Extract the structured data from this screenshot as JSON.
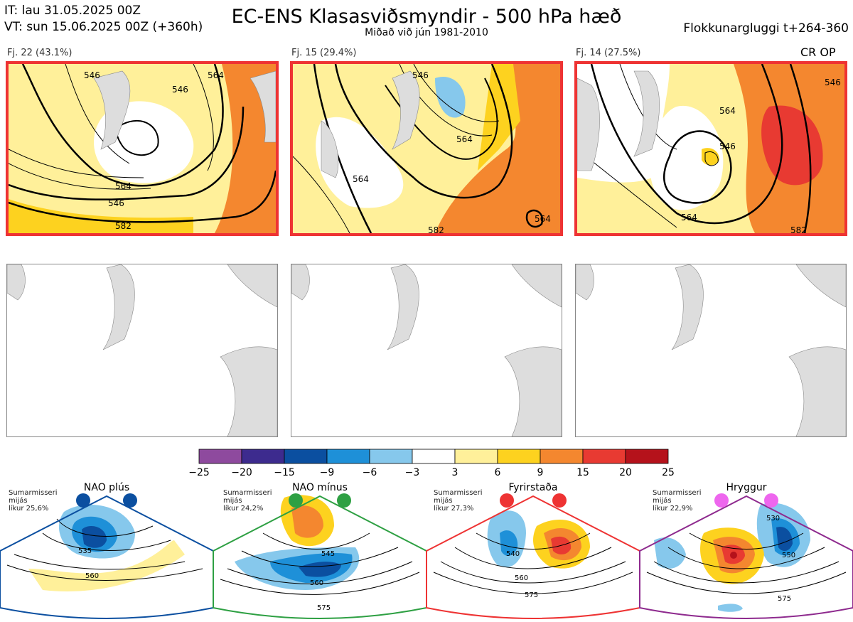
{
  "header": {
    "it": "IT: lau 31.05.2025 00Z",
    "vt": "VT: sun 15.06.2025 00Z  (+360h)",
    "title": "EC-ENS Klasasviðsmyndir - 500 hPa hæð",
    "subtitle": "Miðað við jún 1981-2010",
    "window": "Flokkunargluggi t+264-360",
    "crop": "CR OP"
  },
  "clusters": [
    {
      "label": "Fj. 22 (43.1%)",
      "contours": [
        "546",
        "546",
        "564",
        "582",
        "564",
        "546"
      ]
    },
    {
      "label": "Fj. 15 (29.4%)",
      "contours": [
        "546",
        "564",
        "564",
        "564",
        "582"
      ]
    },
    {
      "label": "Fj. 14 (27.5%)",
      "contours": [
        "546",
        "564",
        "564",
        "582",
        "546"
      ]
    }
  ],
  "colorbar": {
    "ticks": [
      "−25",
      "−20",
      "−15",
      "−9",
      "−6",
      "−3",
      "3",
      "6",
      "9",
      "15",
      "20",
      "25"
    ],
    "colors": [
      "#8e4a9e",
      "#3d2b8e",
      "#0b4fa0",
      "#1e90d8",
      "#86c8ec",
      "#ffffff",
      "#fff09a",
      "#fdd21f",
      "#f4872f",
      "#e83a32",
      "#b5121b"
    ]
  },
  "regimes": [
    {
      "name": "NAO plús",
      "season": "Sumarmisseri",
      "period": "mijás",
      "prob": "líkur 25,6%",
      "contours": [
        "535",
        "560"
      ],
      "color": "#0b4fa0",
      "dot": "#0b4fa0"
    },
    {
      "name": "NAO mínus",
      "season": "Sumarmisseri",
      "period": "mijás",
      "prob": "líkur 24,2%",
      "contours": [
        "545",
        "560",
        "575"
      ],
      "color": "#2ea043",
      "dot": "#2ea043"
    },
    {
      "name": "Fyrirstaða",
      "season": "Sumarmisseri",
      "period": "mijás",
      "prob": "líkur 27,3%",
      "contours": [
        "540",
        "560",
        "575"
      ],
      "color": "#e33",
      "dot": "#e33"
    },
    {
      "name": "Hryggur",
      "season": "Sumarmisseri",
      "period": "mijás",
      "prob": "líkur 22,9%",
      "contours": [
        "530",
        "550",
        "575"
      ],
      "color": "#8e2a8e",
      "dot": "#ee66ee"
    }
  ]
}
